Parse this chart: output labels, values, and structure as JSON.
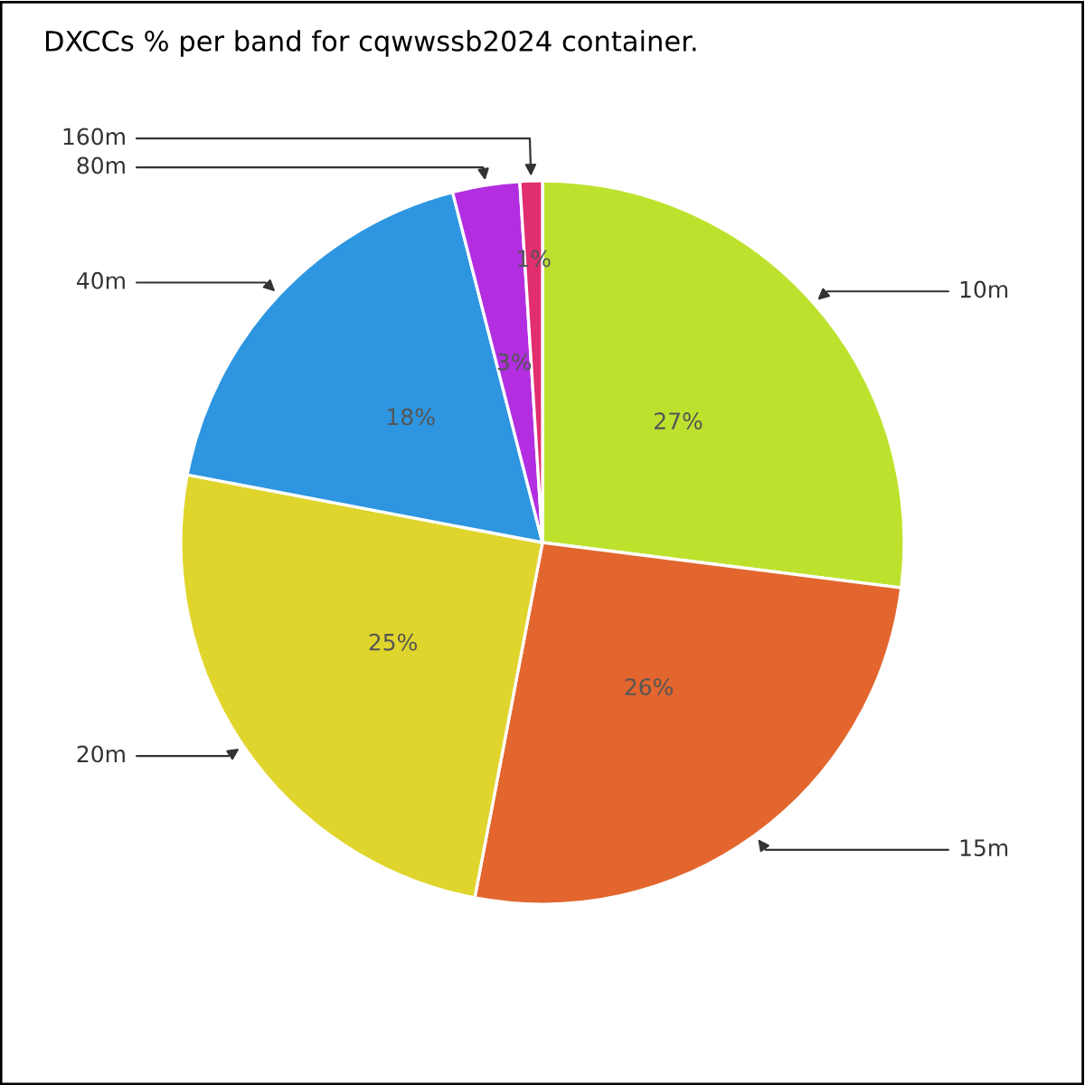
{
  "chart_data": {
    "type": "pie",
    "title": "DXCCs % per band for cqwwssb2024 container.",
    "categories": [
      "10m",
      "15m",
      "20m",
      "40m",
      "80m",
      "160m"
    ],
    "values": [
      27,
      26,
      25,
      18,
      3,
      1
    ],
    "value_labels": [
      "27%",
      "26%",
      "25%",
      "18%",
      "3%",
      "1%"
    ],
    "colors": [
      "#bde22e",
      "#e2662e",
      "#e0d52c",
      "#2e96e0",
      "#b22ee0",
      "#e02e6e"
    ]
  }
}
